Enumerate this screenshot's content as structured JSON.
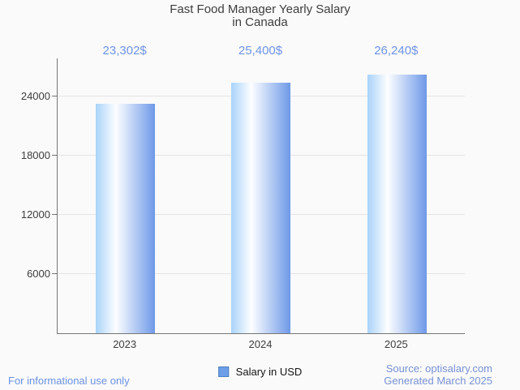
{
  "title": {
    "line1": "Fast Food Manager Yearly Salary",
    "line2": "in Canada"
  },
  "chart_data": {
    "type": "bar",
    "title": "Fast Food Manager Yearly Salary in Canada",
    "categories": [
      "2023",
      "2024",
      "2025"
    ],
    "values": [
      23302,
      25400,
      26240
    ],
    "value_labels": [
      "23,302$",
      "25,400$",
      "26,240$"
    ],
    "series_name": "Salary in USD",
    "yticks": [
      24000,
      18000,
      12000,
      6000
    ],
    "ytick_labels": [
      "24000",
      "18000",
      "12000",
      "6000"
    ],
    "ylim": [
      0,
      27870
    ],
    "xlabel": "",
    "ylabel": "",
    "grid": true,
    "legend_position": "bottom-center",
    "bar_gradient": [
      "#a9d3f9",
      "#ffffff",
      "#6e99e8"
    ]
  },
  "legend": {
    "label": "Salary in USD",
    "swatch_color": "#6d9fe8"
  },
  "footer": {
    "disclaimer": "For informational use only",
    "source": "Source: optisalary.com",
    "generated": "Generated March 2025"
  },
  "colors": {
    "background": "#fafafa",
    "title_text": "#3e3e3e",
    "value_label_text": "#6e94e6",
    "axis_line": "#767676",
    "gridline": "#e4e4e4",
    "disclaimer_text": "#6a92e4",
    "source_text": "#7791d7"
  }
}
